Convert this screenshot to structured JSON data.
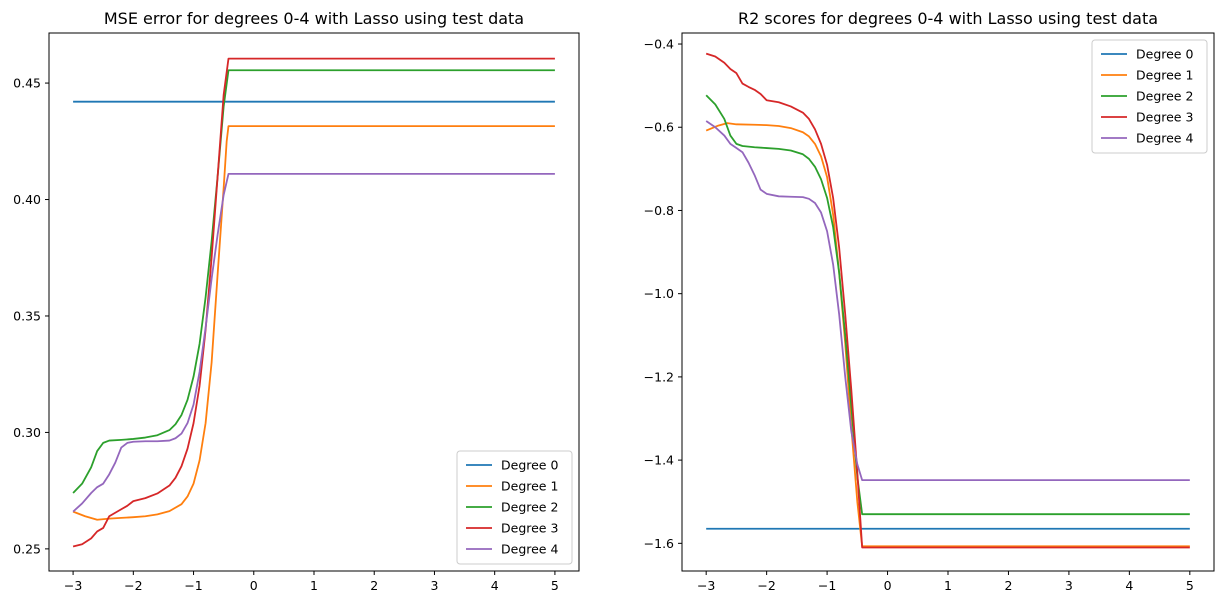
{
  "chart_data": [
    {
      "type": "line",
      "title": "MSE error for degrees 0-4 with Lasso using test data",
      "xlabel": "",
      "ylabel": "",
      "xlim": [
        -3.4,
        5.4
      ],
      "ylim": [
        0.2405,
        0.4715
      ],
      "xticks": [
        -3,
        -2,
        -1,
        0,
        1,
        2,
        3,
        4,
        5
      ],
      "yticks": [
        0.25,
        0.3,
        0.35,
        0.4,
        0.45
      ],
      "ytick_labels": [
        "0.25",
        "0.30",
        "0.35",
        "0.40",
        "0.45"
      ],
      "grid": false,
      "legend_position": "lower-right",
      "series": [
        {
          "name": "Degree 0",
          "color": "#1f77b4",
          "points": [
            [
              -3,
              0.442
            ],
            [
              5,
              0.442
            ]
          ]
        },
        {
          "name": "Degree 1",
          "color": "#ff7f0e",
          "points": [
            [
              -3,
              0.266
            ],
            [
              -2.8,
              0.264
            ],
            [
              -2.6,
              0.2625
            ],
            [
              -2.4,
              0.263
            ],
            [
              -2.2,
              0.2633
            ],
            [
              -2.0,
              0.2636
            ],
            [
              -1.8,
              0.264
            ],
            [
              -1.6,
              0.2648
            ],
            [
              -1.4,
              0.2662
            ],
            [
              -1.2,
              0.2692
            ],
            [
              -1.1,
              0.2725
            ],
            [
              -1.0,
              0.278
            ],
            [
              -0.9,
              0.288
            ],
            [
              -0.8,
              0.304
            ],
            [
              -0.7,
              0.33
            ],
            [
              -0.6,
              0.368
            ],
            [
              -0.5,
              0.405
            ],
            [
              -0.45,
              0.425
            ],
            [
              -0.42,
              0.4315
            ],
            [
              5,
              0.4315
            ]
          ]
        },
        {
          "name": "Degree 2",
          "color": "#2ca02c",
          "points": [
            [
              -3,
              0.274
            ],
            [
              -2.85,
              0.278
            ],
            [
              -2.7,
              0.285
            ],
            [
              -2.6,
              0.292
            ],
            [
              -2.5,
              0.2955
            ],
            [
              -2.4,
              0.2965
            ],
            [
              -2.2,
              0.2968
            ],
            [
              -2.0,
              0.2972
            ],
            [
              -1.8,
              0.2978
            ],
            [
              -1.6,
              0.2988
            ],
            [
              -1.4,
              0.301
            ],
            [
              -1.3,
              0.3035
            ],
            [
              -1.2,
              0.3075
            ],
            [
              -1.1,
              0.314
            ],
            [
              -1.0,
              0.324
            ],
            [
              -0.9,
              0.338
            ],
            [
              -0.8,
              0.358
            ],
            [
              -0.7,
              0.382
            ],
            [
              -0.6,
              0.41
            ],
            [
              -0.5,
              0.44
            ],
            [
              -0.42,
              0.4555
            ],
            [
              5,
              0.4555
            ]
          ]
        },
        {
          "name": "Degree 3",
          "color": "#d62728",
          "points": [
            [
              -3,
              0.251
            ],
            [
              -2.85,
              0.252
            ],
            [
              -2.7,
              0.2545
            ],
            [
              -2.6,
              0.2575
            ],
            [
              -2.5,
              0.259
            ],
            [
              -2.4,
              0.264
            ],
            [
              -2.3,
              0.2655
            ],
            [
              -2.2,
              0.267
            ],
            [
              -2.1,
              0.2685
            ],
            [
              -2.0,
              0.2705
            ],
            [
              -1.8,
              0.2718
            ],
            [
              -1.6,
              0.2738
            ],
            [
              -1.4,
              0.2772
            ],
            [
              -1.3,
              0.2805
            ],
            [
              -1.2,
              0.2855
            ],
            [
              -1.1,
              0.293
            ],
            [
              -1.0,
              0.304
            ],
            [
              -0.9,
              0.32
            ],
            [
              -0.8,
              0.344
            ],
            [
              -0.7,
              0.375
            ],
            [
              -0.6,
              0.41
            ],
            [
              -0.5,
              0.445
            ],
            [
              -0.42,
              0.4605
            ],
            [
              5,
              0.4605
            ]
          ]
        },
        {
          "name": "Degree 4",
          "color": "#9467bd",
          "points": [
            [
              -3,
              0.266
            ],
            [
              -2.85,
              0.2695
            ],
            [
              -2.7,
              0.274
            ],
            [
              -2.6,
              0.2765
            ],
            [
              -2.5,
              0.278
            ],
            [
              -2.4,
              0.282
            ],
            [
              -2.3,
              0.287
            ],
            [
              -2.2,
              0.2935
            ],
            [
              -2.1,
              0.2955
            ],
            [
              -2.0,
              0.296
            ],
            [
              -1.8,
              0.2962
            ],
            [
              -1.6,
              0.2962
            ],
            [
              -1.4,
              0.2965
            ],
            [
              -1.3,
              0.2975
            ],
            [
              -1.2,
              0.2995
            ],
            [
              -1.1,
              0.304
            ],
            [
              -1.0,
              0.312
            ],
            [
              -0.9,
              0.326
            ],
            [
              -0.8,
              0.345
            ],
            [
              -0.7,
              0.366
            ],
            [
              -0.6,
              0.385
            ],
            [
              -0.5,
              0.402
            ],
            [
              -0.42,
              0.411
            ],
            [
              5,
              0.411
            ]
          ]
        }
      ]
    },
    {
      "type": "line",
      "title": "R2 scores for degrees 0-4 with Lasso using test data",
      "xlabel": "",
      "ylabel": "",
      "xlim": [
        -3.4,
        5.4
      ],
      "ylim": [
        -1.6665,
        -0.3735
      ],
      "xticks": [
        -3,
        -2,
        -1,
        0,
        1,
        2,
        3,
        4,
        5
      ],
      "yticks": [
        -1.6,
        -1.4,
        -1.2,
        -1.0,
        -0.8,
        -0.6,
        -0.4
      ],
      "ytick_labels": [
        "−1.6",
        "−1.4",
        "−1.2",
        "−1.0",
        "−0.8",
        "−0.6",
        "−0.4"
      ],
      "grid": false,
      "legend_position": "upper-right",
      "series": [
        {
          "name": "Degree 0",
          "color": "#1f77b4",
          "points": [
            [
              -3,
              -1.565
            ],
            [
              5,
              -1.565
            ]
          ]
        },
        {
          "name": "Degree 1",
          "color": "#ff7f0e",
          "points": [
            [
              -3,
              -0.608
            ],
            [
              -2.8,
              -0.596
            ],
            [
              -2.65,
              -0.59
            ],
            [
              -2.5,
              -0.593
            ],
            [
              -2.2,
              -0.594
            ],
            [
              -2.0,
              -0.595
            ],
            [
              -1.8,
              -0.597
            ],
            [
              -1.6,
              -0.602
            ],
            [
              -1.4,
              -0.612
            ],
            [
              -1.3,
              -0.622
            ],
            [
              -1.2,
              -0.64
            ],
            [
              -1.1,
              -0.67
            ],
            [
              -1.0,
              -0.72
            ],
            [
              -0.9,
              -0.81
            ],
            [
              -0.8,
              -0.95
            ],
            [
              -0.7,
              -1.12
            ],
            [
              -0.6,
              -1.32
            ],
            [
              -0.5,
              -1.5
            ],
            [
              -0.42,
              -1.607
            ],
            [
              5,
              -1.607
            ]
          ]
        },
        {
          "name": "Degree 2",
          "color": "#2ca02c",
          "points": [
            [
              -3,
              -0.523
            ],
            [
              -2.85,
              -0.545
            ],
            [
              -2.7,
              -0.58
            ],
            [
              -2.6,
              -0.62
            ],
            [
              -2.5,
              -0.64
            ],
            [
              -2.4,
              -0.645
            ],
            [
              -2.2,
              -0.648
            ],
            [
              -2.0,
              -0.65
            ],
            [
              -1.8,
              -0.652
            ],
            [
              -1.6,
              -0.656
            ],
            [
              -1.4,
              -0.665
            ],
            [
              -1.3,
              -0.676
            ],
            [
              -1.2,
              -0.695
            ],
            [
              -1.1,
              -0.725
            ],
            [
              -1.0,
              -0.77
            ],
            [
              -0.9,
              -0.84
            ],
            [
              -0.8,
              -0.95
            ],
            [
              -0.7,
              -1.1
            ],
            [
              -0.6,
              -1.27
            ],
            [
              -0.5,
              -1.44
            ],
            [
              -0.42,
              -1.53
            ],
            [
              5,
              -1.53
            ]
          ]
        },
        {
          "name": "Degree 3",
          "color": "#d62728",
          "points": [
            [
              -3,
              -0.423
            ],
            [
              -2.85,
              -0.43
            ],
            [
              -2.7,
              -0.445
            ],
            [
              -2.6,
              -0.46
            ],
            [
              -2.5,
              -0.47
            ],
            [
              -2.4,
              -0.495
            ],
            [
              -2.3,
              -0.503
            ],
            [
              -2.2,
              -0.51
            ],
            [
              -2.1,
              -0.52
            ],
            [
              -2.0,
              -0.535
            ],
            [
              -1.8,
              -0.54
            ],
            [
              -1.6,
              -0.55
            ],
            [
              -1.4,
              -0.565
            ],
            [
              -1.3,
              -0.58
            ],
            [
              -1.2,
              -0.605
            ],
            [
              -1.1,
              -0.64
            ],
            [
              -1.0,
              -0.69
            ],
            [
              -0.9,
              -0.77
            ],
            [
              -0.8,
              -0.89
            ],
            [
              -0.7,
              -1.05
            ],
            [
              -0.6,
              -1.23
            ],
            [
              -0.5,
              -1.43
            ],
            [
              -0.42,
              -1.61
            ],
            [
              5,
              -1.61
            ]
          ]
        },
        {
          "name": "Degree 4",
          "color": "#9467bd",
          "points": [
            [
              -3,
              -0.585
            ],
            [
              -2.85,
              -0.6
            ],
            [
              -2.7,
              -0.62
            ],
            [
              -2.6,
              -0.64
            ],
            [
              -2.5,
              -0.65
            ],
            [
              -2.4,
              -0.66
            ],
            [
              -2.3,
              -0.685
            ],
            [
              -2.2,
              -0.715
            ],
            [
              -2.1,
              -0.75
            ],
            [
              -2.0,
              -0.76
            ],
            [
              -1.8,
              -0.766
            ],
            [
              -1.6,
              -0.767
            ],
            [
              -1.4,
              -0.768
            ],
            [
              -1.3,
              -0.772
            ],
            [
              -1.2,
              -0.782
            ],
            [
              -1.1,
              -0.805
            ],
            [
              -1.0,
              -0.85
            ],
            [
              -0.9,
              -0.93
            ],
            [
              -0.8,
              -1.05
            ],
            [
              -0.7,
              -1.2
            ],
            [
              -0.6,
              -1.33
            ],
            [
              -0.5,
              -1.41
            ],
            [
              -0.42,
              -1.448
            ],
            [
              5,
              -1.448
            ]
          ]
        }
      ]
    }
  ]
}
